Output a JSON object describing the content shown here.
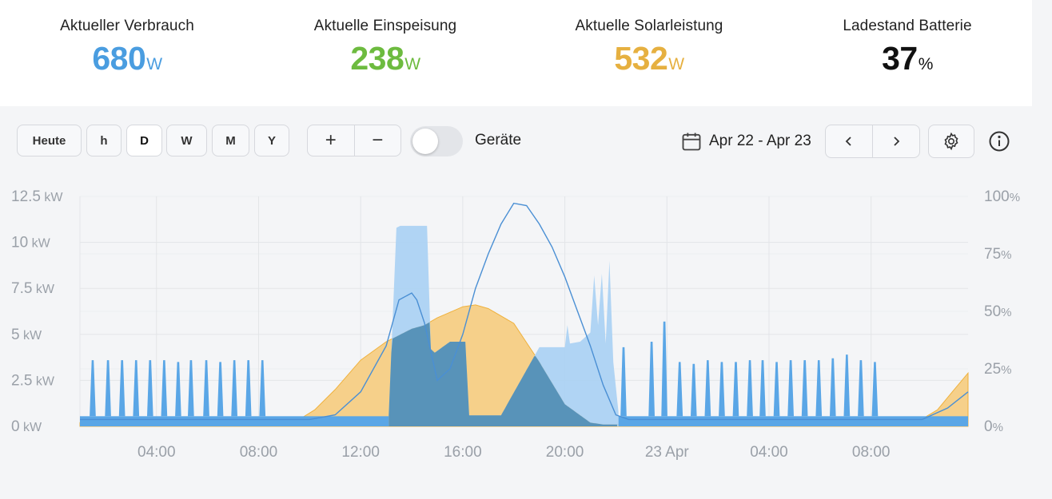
{
  "stats": [
    {
      "label": "Aktueller Verbrauch",
      "value": "680",
      "unit": "W",
      "color": "#4a9de0"
    },
    {
      "label": "Aktuelle Einspeisung",
      "value": "238",
      "unit": "W",
      "color": "#6dbb3f"
    },
    {
      "label": "Aktuelle Solarleistung",
      "value": "532",
      "unit": "W",
      "color": "#e6b040"
    },
    {
      "label": "Ladestand Batterie",
      "value": "37",
      "unit": "%",
      "color": "#111111"
    }
  ],
  "toolbar": {
    "today_label": "Heute",
    "range_buttons": [
      "h",
      "D",
      "W",
      "M",
      "Y"
    ],
    "active_range": "D",
    "zoom_in": "+",
    "zoom_out": "−",
    "devices_label": "Geräte",
    "devices_toggle_on": false,
    "date_range": "Apr 22 - Apr 23",
    "prev": "‹",
    "next": "›"
  },
  "icons": {
    "calendar": "calendar-icon",
    "settings": "gear-icon",
    "info": "info-icon",
    "prev": "chevron-left-icon",
    "next": "chevron-right-icon"
  },
  "chart_data": {
    "type": "area",
    "x_unit": "hours from Apr 22 00:00",
    "xlim": [
      1,
      35.8
    ],
    "x_ticks": [
      {
        "x": 4,
        "label": "04:00"
      },
      {
        "x": 8,
        "label": "08:00"
      },
      {
        "x": 12,
        "label": "12:00"
      },
      {
        "x": 16,
        "label": "16:00"
      },
      {
        "x": 20,
        "label": "20:00"
      },
      {
        "x": 24,
        "label": "23 Apr"
      },
      {
        "x": 28,
        "label": "04:00"
      },
      {
        "x": 32,
        "label": "08:00"
      }
    ],
    "y_left": {
      "ylim": [
        0,
        12.5
      ],
      "unit": "kW",
      "ticks": [
        "12.5",
        "10",
        "7.5",
        "5",
        "2.5",
        "0"
      ]
    },
    "y_right": {
      "ylim": [
        0,
        100
      ],
      "unit": "%",
      "ticks": [
        "100",
        "75",
        "50",
        "25",
        "0"
      ]
    },
    "grid": true,
    "colors": {
      "solar": "#f6d08a",
      "solar_dark": "#efb13c",
      "consumption": "#5aa6e6",
      "consumption_light": "#a8d0f3",
      "overlap": "#3b7ea8",
      "battery": "#4a8fd4"
    },
    "series": [
      {
        "key": "solar",
        "axis": "left",
        "x": [
          1,
          8,
          9.5,
          10.2,
          11,
          12,
          13,
          14,
          14.5,
          15,
          15.5,
          16,
          16.5,
          17,
          18,
          19,
          20,
          21,
          21.5,
          22,
          23,
          24,
          25,
          26,
          27,
          28,
          29,
          30,
          31,
          32,
          33,
          34,
          34.6,
          35.2,
          35.8
        ],
        "values": [
          0.2,
          0.2,
          0.3,
          0.9,
          2.0,
          3.6,
          4.6,
          5.3,
          5.5,
          5.9,
          6.2,
          6.5,
          6.6,
          6.4,
          5.6,
          3.5,
          1.2,
          0.2,
          0.1,
          0.1,
          0.1,
          0.1,
          0.1,
          0.1,
          0.1,
          0.1,
          0.1,
          0.1,
          0.1,
          0.1,
          0.2,
          0.4,
          0.9,
          1.9,
          2.9
        ]
      },
      {
        "key": "consumption",
        "axis": "left",
        "baseline": 0.55,
        "spike_times": [
          1.5,
          2.1,
          2.65,
          3.2,
          3.75,
          4.3,
          4.85,
          5.35,
          5.95,
          6.5,
          7.05,
          7.6,
          8.15,
          22.3,
          23.4,
          23.9,
          24.5,
          25.05,
          25.6,
          26.15,
          26.7,
          27.25,
          27.75,
          28.3,
          28.85,
          29.4,
          29.95,
          30.5,
          31.05,
          31.6,
          32.15
        ],
        "spike_heights": [
          3.6,
          3.6,
          3.6,
          3.6,
          3.6,
          3.6,
          3.5,
          3.6,
          3.6,
          3.5,
          3.6,
          3.6,
          3.6,
          4.3,
          4.6,
          5.7,
          3.5,
          3.4,
          3.6,
          3.5,
          3.5,
          3.6,
          3.6,
          3.5,
          3.6,
          3.6,
          3.6,
          3.7,
          3.9,
          3.6,
          3.5
        ],
        "block_x": [
          13.1,
          13.4,
          13.55,
          14.6,
          14.75,
          14.9,
          15.5,
          16.1,
          16.25,
          17.5,
          19,
          20,
          20.1,
          20.2,
          20.6,
          21.0,
          21.15,
          21.3,
          21.45,
          21.6,
          21.75,
          21.9,
          22.1
        ],
        "block_values": [
          0.6,
          10.8,
          10.9,
          10.9,
          4.2,
          4.0,
          4.6,
          4.6,
          0.6,
          0.6,
          4.3,
          4.3,
          5.5,
          4.5,
          4.6,
          5.1,
          8.2,
          5.5,
          8.3,
          4.5,
          9.0,
          3.5,
          0.8
        ]
      },
      {
        "key": "battery",
        "axis": "right",
        "x": [
          1,
          10,
          11,
          12,
          13,
          13.5,
          14,
          14.2,
          14.5,
          15,
          15.5,
          16,
          16.5,
          17,
          17.5,
          18,
          18.5,
          19,
          19.5,
          20,
          20.5,
          21,
          21.5,
          22,
          22.5,
          24,
          34,
          35,
          35.8
        ],
        "values": [
          3,
          3,
          5,
          15,
          35,
          55,
          58,
          55,
          45,
          20,
          25,
          40,
          60,
          75,
          88,
          97,
          96,
          88,
          78,
          65,
          50,
          35,
          18,
          5,
          3,
          3,
          3,
          8,
          15
        ]
      }
    ]
  }
}
